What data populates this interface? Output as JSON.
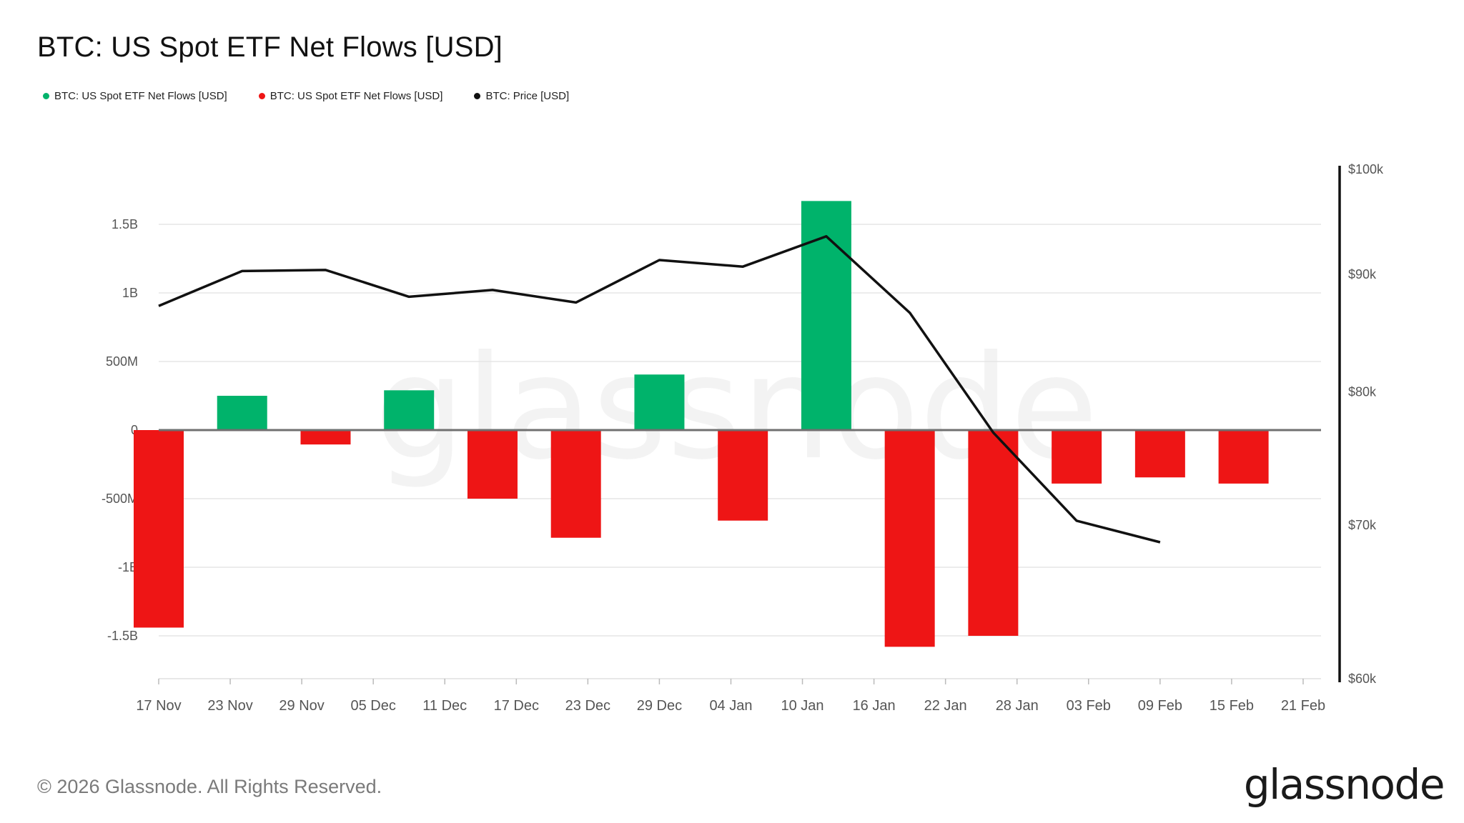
{
  "title": "BTC: US Spot ETF Net Flows [USD]",
  "legend": [
    {
      "label": "BTC: US Spot ETF Net Flows [USD]",
      "color": "#00b36b"
    },
    {
      "label": "BTC: US Spot ETF Net Flows [USD]",
      "color": "#ee1515"
    },
    {
      "label": "BTC: Price [USD]",
      "color": "#111111"
    }
  ],
  "footer": "© 2026 Glassnode. All Rights Reserved.",
  "brand": "glassnode",
  "watermark": "glassnode",
  "chart_data": {
    "type": "bar",
    "title": "BTC: US Spot ETF Net Flows [USD]",
    "x_ticks": [
      "17 Nov",
      "23 Nov",
      "29 Nov",
      "05 Dec",
      "11 Dec",
      "17 Dec",
      "23 Dec",
      "29 Dec",
      "04 Jan",
      "10 Jan",
      "16 Jan",
      "22 Jan",
      "28 Jan",
      "03 Feb",
      "09 Feb",
      "15 Feb",
      "21 Feb"
    ],
    "left_axis": {
      "ticks": [
        1500000000,
        1000000000,
        500000000,
        0,
        -500000000,
        -1000000000,
        -1500000000
      ],
      "tick_labels": [
        "1.5B",
        "1B",
        "500M",
        "0",
        "-500M",
        "-1B",
        "-1.5B"
      ],
      "ylim": [
        -1800000000,
        1900000000
      ]
    },
    "right_axis": {
      "ticks": [
        100000,
        90000,
        80000,
        70000,
        60000
      ],
      "tick_labels": [
        "$100k",
        "$90k",
        "$80k",
        "$70k",
        "$60k"
      ],
      "ylim": [
        60000,
        100000
      ],
      "scale": "log"
    },
    "flows": {
      "dates": [
        "2025-11-17",
        "2025-11-24",
        "2025-12-01",
        "2025-12-08",
        "2025-12-15",
        "2025-12-22",
        "2025-12-29",
        "2026-01-05",
        "2026-01-12",
        "2026-01-19",
        "2026-01-26",
        "2026-02-02",
        "2026-02-09",
        "2026-02-16"
      ],
      "values": [
        -1440000000,
        250000000,
        -105000000,
        290000000,
        -500000000,
        -785000000,
        405000000,
        -660000000,
        1670000000,
        -1580000000,
        -1500000000,
        -390000000,
        -345000000,
        -390000000
      ],
      "positive_color": "#00b36b",
      "negative_color": "#ee1515"
    },
    "price": {
      "dates": [
        "2025-11-17",
        "2025-11-24",
        "2025-12-01",
        "2025-12-08",
        "2025-12-15",
        "2025-12-22",
        "2025-12-29",
        "2026-01-05",
        "2026-01-12",
        "2026-01-19",
        "2026-01-26",
        "2026-02-02",
        "2026-02-09"
      ],
      "values": [
        87200,
        90300,
        90400,
        88000,
        88600,
        87500,
        91300,
        90700,
        93500,
        86600,
        76800,
        70300,
        68800
      ],
      "color": "#111111"
    },
    "grid": true
  }
}
